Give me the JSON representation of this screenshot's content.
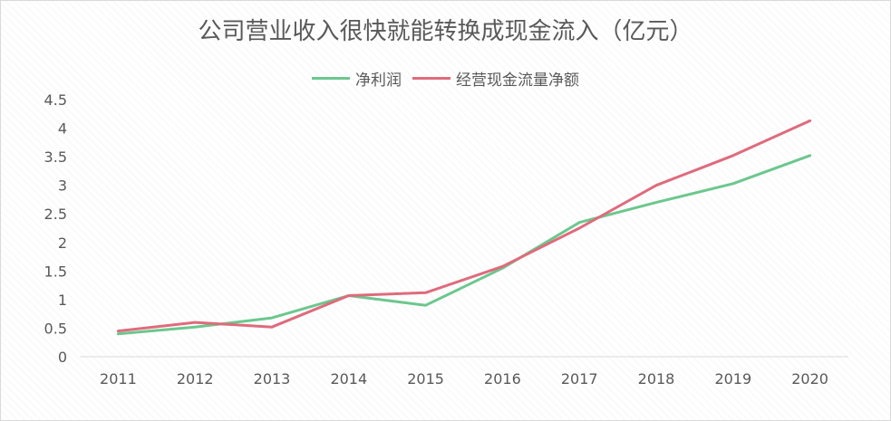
{
  "chart_data": {
    "type": "line",
    "title": "公司营业收入很快就能转换成现金流入（亿元）",
    "xlabel": "",
    "ylabel": "",
    "categories": [
      "2011",
      "2012",
      "2013",
      "2014",
      "2015",
      "2016",
      "2017",
      "2018",
      "2019",
      "2020"
    ],
    "ylim": [
      0,
      4.5
    ],
    "yticks": [
      "0",
      "0.5",
      "1",
      "1.5",
      "2",
      "2.5",
      "3",
      "3.5",
      "4",
      "4.5"
    ],
    "grid": false,
    "legend_position": "top",
    "series": [
      {
        "name": "净利润",
        "color": "#6cc78e",
        "values": [
          0.4,
          0.52,
          0.68,
          1.07,
          0.9,
          1.55,
          2.35,
          2.7,
          3.03,
          3.52
        ]
      },
      {
        "name": "经营现金流量净额",
        "color": "#df6b7c",
        "values": [
          0.45,
          0.6,
          0.52,
          1.07,
          1.12,
          1.58,
          2.25,
          3.0,
          3.52,
          4.13
        ]
      }
    ]
  }
}
